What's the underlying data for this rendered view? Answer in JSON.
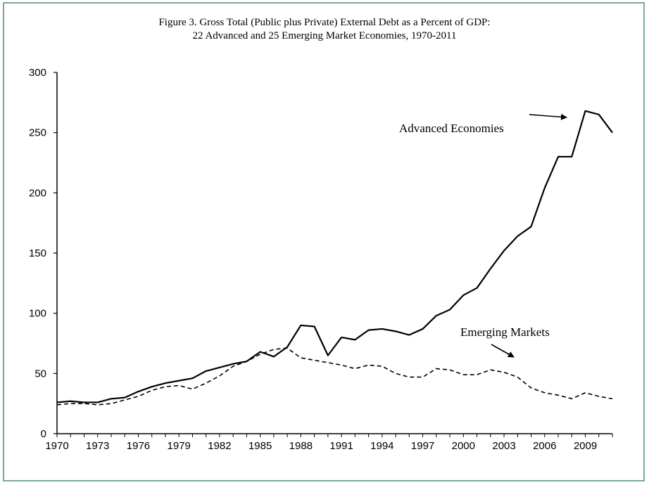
{
  "chart_data": {
    "type": "line",
    "title": "Figure 3. Gross Total (Public plus Private) External Debt as a Percent of GDP:",
    "subtitle": "22 Advanced and 25 Emerging Market Economies, 1970-2011",
    "xlabel": "",
    "ylabel": "",
    "xlim": [
      1970,
      2011
    ],
    "ylim": [
      0,
      300
    ],
    "yticks": [
      0,
      50,
      100,
      150,
      200,
      250,
      300
    ],
    "xticks": [
      1970,
      1973,
      1976,
      1979,
      1982,
      1985,
      1988,
      1991,
      1994,
      1997,
      2000,
      2003,
      2006,
      2009
    ],
    "grid": false,
    "x": [
      1970,
      1971,
      1972,
      1973,
      1974,
      1975,
      1976,
      1977,
      1978,
      1979,
      1980,
      1981,
      1982,
      1983,
      1984,
      1985,
      1986,
      1987,
      1988,
      1989,
      1990,
      1991,
      1992,
      1993,
      1994,
      1995,
      1996,
      1997,
      1998,
      1999,
      2000,
      2001,
      2002,
      2003,
      2004,
      2005,
      2006,
      2007,
      2008,
      2009,
      2010,
      2011
    ],
    "series": [
      {
        "name": "Advanced Economies",
        "style": "solid",
        "values": [
          26,
          27,
          26,
          26,
          29,
          30,
          35,
          39,
          42,
          44,
          46,
          52,
          55,
          58,
          60,
          68,
          64,
          72,
          90,
          89,
          65,
          80,
          78,
          86,
          87,
          85,
          82,
          87,
          98,
          103,
          115,
          121,
          137,
          152,
          164,
          172,
          204,
          230,
          230,
          268,
          265,
          250
        ]
      },
      {
        "name": "Emerging Markets",
        "style": "dashed",
        "values": [
          24,
          25,
          25,
          24,
          25,
          28,
          31,
          36,
          39,
          40,
          37,
          42,
          48,
          56,
          60,
          66,
          70,
          71,
          63,
          61,
          59,
          57,
          54,
          57,
          56,
          50,
          47,
          47,
          54,
          53,
          49,
          49,
          53,
          51,
          47,
          38,
          34,
          32,
          29,
          34,
          31,
          29
        ]
      }
    ],
    "annotations": [
      {
        "text": "Advanced Economies",
        "target_series": "Advanced Economies"
      },
      {
        "text": "Emerging Markets",
        "target_series": "Emerging Markets"
      }
    ]
  }
}
